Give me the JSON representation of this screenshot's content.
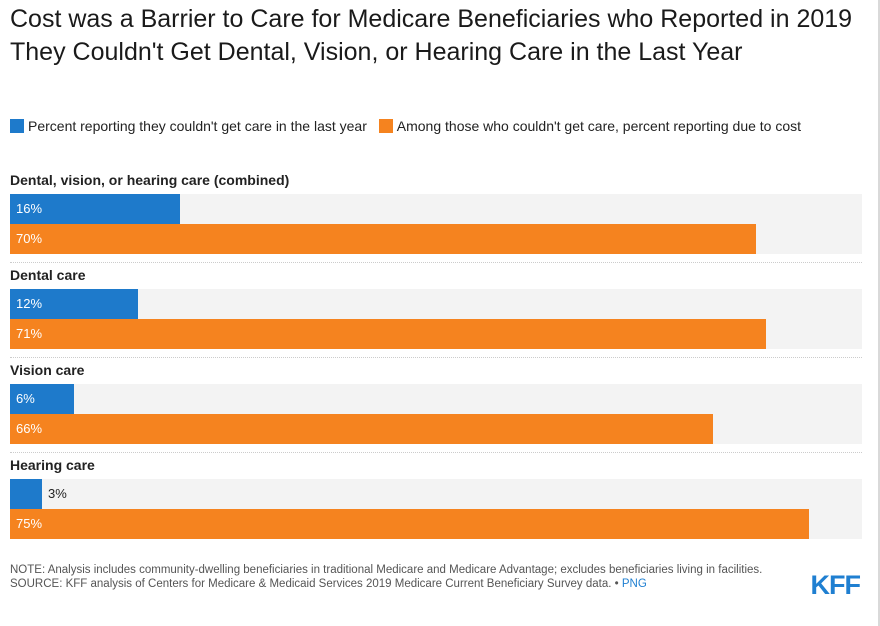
{
  "chart_data": {
    "type": "bar",
    "orientation": "horizontal",
    "title": "Cost was a Barrier to Care for Medicare Beneficiaries who Reported in 2019 They Couldn't Get Dental, Vision, or Hearing Care in the Last Year",
    "categories": [
      "Dental, vision, or hearing care (combined)",
      "Dental care",
      "Vision care",
      "Hearing care"
    ],
    "series": [
      {
        "name": "Percent reporting they couldn't get care in the last year",
        "values": [
          16,
          12,
          6,
          3
        ],
        "labels": [
          "16%",
          "12%",
          "6%",
          "3%"
        ]
      },
      {
        "name": "Among those who couldn't get care, percent reporting due to cost",
        "values": [
          70,
          71,
          66,
          75
        ],
        "labels": [
          "70%",
          "71%",
          "66%",
          "75%"
        ]
      }
    ],
    "xlim": [
      0,
      80
    ],
    "legend_position": "top",
    "grid": false
  },
  "colors": {
    "series": [
      "#1e7acb",
      "#f5831f"
    ],
    "track": "#f3f3f3",
    "brand": "#1f7fd1"
  },
  "notes": {
    "note": "NOTE: Analysis includes community-dwelling beneficiaries in traditional Medicare and Medicare Advantage; excludes beneficiaries living in facilities.",
    "source": "SOURCE: KFF analysis of Centers for Medicare & Medicaid Services 2019 Medicare Current Beneficiary Survey data. •",
    "png_link": "PNG"
  },
  "logo": {
    "text": "KFF"
  }
}
